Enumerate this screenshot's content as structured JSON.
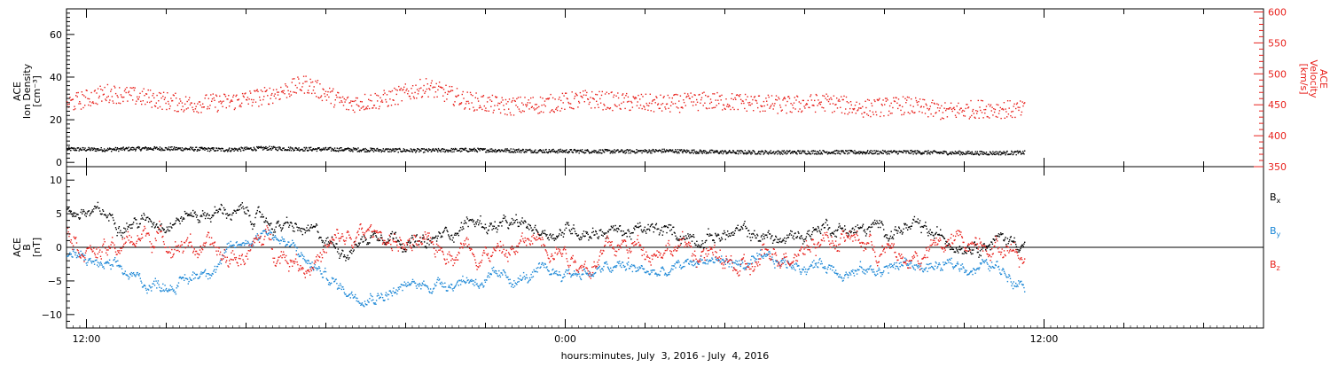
{
  "colors": {
    "black": "#000000",
    "red": "#e8211c",
    "blue": "#1b87d6"
  },
  "x_axis": {
    "title": "hours:minutes, July  3, 2016 - July  4, 2016",
    "tick_labels": [
      {
        "hours": 0,
        "label": "12:00"
      },
      {
        "hours": 12,
        "label": "0:00"
      },
      {
        "hours": 24,
        "label": "12:00"
      }
    ],
    "range_hours": [
      -0.5,
      29.5
    ],
    "minor_tick_step_hours": 2
  },
  "chart_data": [
    {
      "type": "scatter",
      "panel": "density-velocity",
      "left_axis": {
        "title_lines": [
          "ACE",
          "Ion Density",
          "[cm⁻³]"
        ],
        "ylim": [
          -2,
          72
        ],
        "ticks": [
          0,
          20,
          40,
          60
        ],
        "tick_labels": [
          "0",
          "20",
          "40",
          "60"
        ]
      },
      "right_axis": {
        "title_lines": [
          "ACE",
          "Velocity",
          "[km/s]"
        ],
        "color": "#e8211c",
        "ylim": [
          350,
          605
        ],
        "ticks": [
          350,
          400,
          450,
          500,
          550,
          600
        ],
        "tick_labels": [
          "350",
          "400",
          "450",
          "500",
          "550",
          "600"
        ]
      },
      "series": [
        {
          "axis": "left",
          "color": "#000000",
          "x_hours": [
            -0.5,
            0.5,
            1.5,
            2.5,
            3.5,
            4.5,
            5.5,
            6.5,
            7.5,
            8.5,
            9.5,
            10.5,
            11.5,
            12.5,
            13.5,
            14.5,
            15.5,
            16.5,
            17.5,
            18.5,
            19.5,
            20.5,
            21.5,
            22.5,
            23.5
          ],
          "values": [
            6.5,
            6.3,
            6.8,
            6.6,
            6.2,
            6.9,
            6.5,
            6.3,
            6.0,
            5.8,
            6.1,
            5.9,
            5.6,
            5.5,
            5.4,
            5.7,
            5.2,
            5.0,
            5.0,
            5.1,
            5.0,
            5.1,
            4.8,
            4.6,
            4.8
          ],
          "spread": 0.9
        },
        {
          "axis": "right",
          "color": "#e8211c",
          "x_hours": [
            -0.5,
            0.5,
            1.5,
            2.5,
            3.5,
            4.5,
            5.5,
            6.5,
            7.5,
            8.5,
            9.5,
            10.5,
            11.5,
            12.5,
            13.5,
            14.5,
            15.5,
            16.5,
            17.5,
            18.5,
            19.5,
            20.5,
            21.5,
            22.5,
            23.5
          ],
          "values": [
            452,
            470,
            462,
            452,
            455,
            465,
            485,
            452,
            460,
            480,
            458,
            448,
            452,
            460,
            455,
            452,
            457,
            455,
            450,
            455,
            445,
            450,
            440,
            445,
            442
          ],
          "spread": 15
        }
      ]
    },
    {
      "type": "scatter",
      "panel": "magnetic-field",
      "left_axis": {
        "title_lines": [
          "ACE",
          "B",
          "[nT]"
        ],
        "ylim": [
          -12,
          12
        ],
        "ticks": [
          -10,
          -5,
          0,
          5,
          10
        ],
        "tick_labels": [
          "−10",
          "−5",
          "0",
          "5",
          "10"
        ],
        "zero_line": true
      },
      "series": [
        {
          "name": "B",
          "sub": "x",
          "color": "#000000",
          "x_hours": [
            -0.5,
            0.5,
            1.5,
            2.5,
            3.5,
            4.5,
            5.5,
            6.5,
            7.5,
            8.5,
            9.5,
            10.5,
            11.5,
            12.5,
            13.5,
            14.5,
            15.5,
            16.5,
            17.5,
            18.5,
            19.5,
            20.5,
            21.5,
            22.5,
            23.5
          ],
          "values": [
            6,
            4.5,
            4,
            5,
            5.5,
            4,
            2,
            0,
            3,
            0,
            4,
            3,
            2.5,
            3,
            2.5,
            2,
            2,
            2,
            1,
            3.5,
            2.5,
            3,
            1,
            1.5,
            1
          ],
          "spread": 1.8
        },
        {
          "name": "B",
          "sub": "y",
          "color": "#1b87d6",
          "x_hours": [
            -0.5,
            0.5,
            1.5,
            2.5,
            3.5,
            4.5,
            5.5,
            6.5,
            7.5,
            8.5,
            9.5,
            10.5,
            11.5,
            12.5,
            13.5,
            14.5,
            15.5,
            16.5,
            17.5,
            18.5,
            19.5,
            20.5,
            21.5,
            22.5,
            23.5
          ],
          "values": [
            -1,
            -3,
            -5.5,
            -5,
            -1,
            3,
            -2,
            -6.5,
            -6.5,
            -5.5,
            -4.5,
            -5,
            -4,
            -3.5,
            -3,
            -4,
            -1.5,
            -2.5,
            -2.5,
            -2.5,
            -3.5,
            -2.5,
            -3,
            -2.5,
            -4.5
          ],
          "spread": 1.5
        },
        {
          "name": "B",
          "sub": "z",
          "color": "#e8211c",
          "x_hours": [
            -0.5,
            0.5,
            1.5,
            2.5,
            3.5,
            4.5,
            5.5,
            6.5,
            7.5,
            8.5,
            9.5,
            10.5,
            11.5,
            12.5,
            13.5,
            14.5,
            15.5,
            16.5,
            17.5,
            18.5,
            19.5,
            20.5,
            21.5,
            22.5,
            23.5
          ],
          "values": [
            2,
            -1,
            2,
            1,
            -2,
            1,
            -2,
            1,
            2,
            -1,
            1,
            -1,
            2,
            -2,
            0,
            1,
            -1,
            -4,
            0,
            2,
            1,
            -2,
            0,
            2,
            -1
          ],
          "spread": 2.8
        }
      ]
    }
  ]
}
